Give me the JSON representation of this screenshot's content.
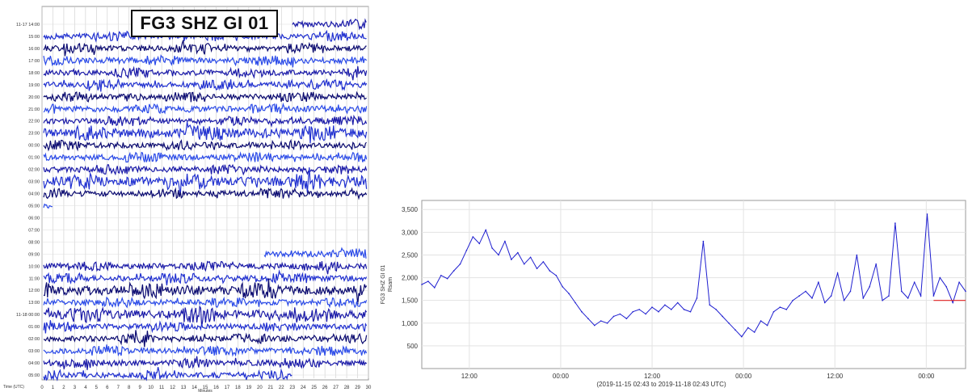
{
  "heli": {
    "title": "FG3 SHZ GI 01",
    "row_labels": [
      "11-17 14:00",
      "15:00",
      "16:00",
      "17:00",
      "18:00",
      "19:00",
      "20:00",
      "21:00",
      "22:00",
      "23:00",
      "00:00",
      "01:00",
      "02:00",
      "03:00",
      "04:00",
      "05:00",
      "06:00",
      "07:00",
      "08:00",
      "09:00",
      "10:00",
      "11:00",
      "12:00",
      "13:00",
      "11-18 00:00",
      "01:00",
      "02:00",
      "03:00",
      "04:00",
      "05:00"
    ],
    "x_ticks": [
      "0",
      "1",
      "2",
      "3",
      "4",
      "5",
      "6",
      "7",
      "8",
      "9",
      "10",
      "11",
      "12",
      "13",
      "14",
      "15",
      "16",
      "17",
      "18",
      "19",
      "20",
      "21",
      "22",
      "23",
      "24",
      "25",
      "26",
      "27",
      "28",
      "29",
      "30"
    ],
    "x_unit": "Minutes",
    "x_left_note": "Time (UTC)",
    "trace_colors": [
      "#1a1aa8",
      "#2030d0",
      "#0a0a70",
      "#2a4ae8"
    ]
  },
  "chart_data": {
    "type": "line",
    "ylabel": "FG3 SHZ GI 01\nRsam",
    "ylim": [
      0,
      3700
    ],
    "yticks": [
      500,
      1000,
      1500,
      2000,
      2500,
      3000,
      3500
    ],
    "ytick_labels": [
      "500",
      "1,000",
      "1,500",
      "2,000",
      "2,500",
      "3,000",
      "3,500"
    ],
    "xticks": [
      "12:00",
      "00:00",
      "12:00",
      "00:00",
      "12:00",
      "00:00"
    ],
    "xlabel": "(2019-11-15 02:43 to 2019-11-18 02:43 UTC)",
    "series": [
      {
        "color": "#1f1fd0",
        "values": [
          1850,
          1920,
          1780,
          2050,
          1980,
          2150,
          2300,
          2600,
          2900,
          2750,
          3050,
          2650,
          2500,
          2800,
          2400,
          2550,
          2300,
          2450,
          2200,
          2350,
          2150,
          2050,
          1800,
          1650,
          1450,
          1250,
          1100,
          950,
          1050,
          1000,
          1150,
          1200,
          1100,
          1250,
          1300,
          1200,
          1350,
          1250,
          1400,
          1300,
          1450,
          1300,
          1250,
          1550,
          2800,
          1400,
          1300,
          1150,
          1000,
          850,
          700,
          900,
          800,
          1050,
          950,
          1250,
          1350,
          1300,
          1500,
          1600,
          1700,
          1550,
          1900,
          1450,
          1600,
          2100,
          1500,
          1700,
          2500,
          1550,
          1800,
          2300,
          1500,
          1600,
          3200,
          1700,
          1550,
          1900,
          1600,
          3400,
          1600,
          2000,
          1800,
          1450,
          1900,
          1700
        ]
      }
    ],
    "reference_line": {
      "value": 1500,
      "color": "#e02020",
      "start_index": 80
    }
  }
}
